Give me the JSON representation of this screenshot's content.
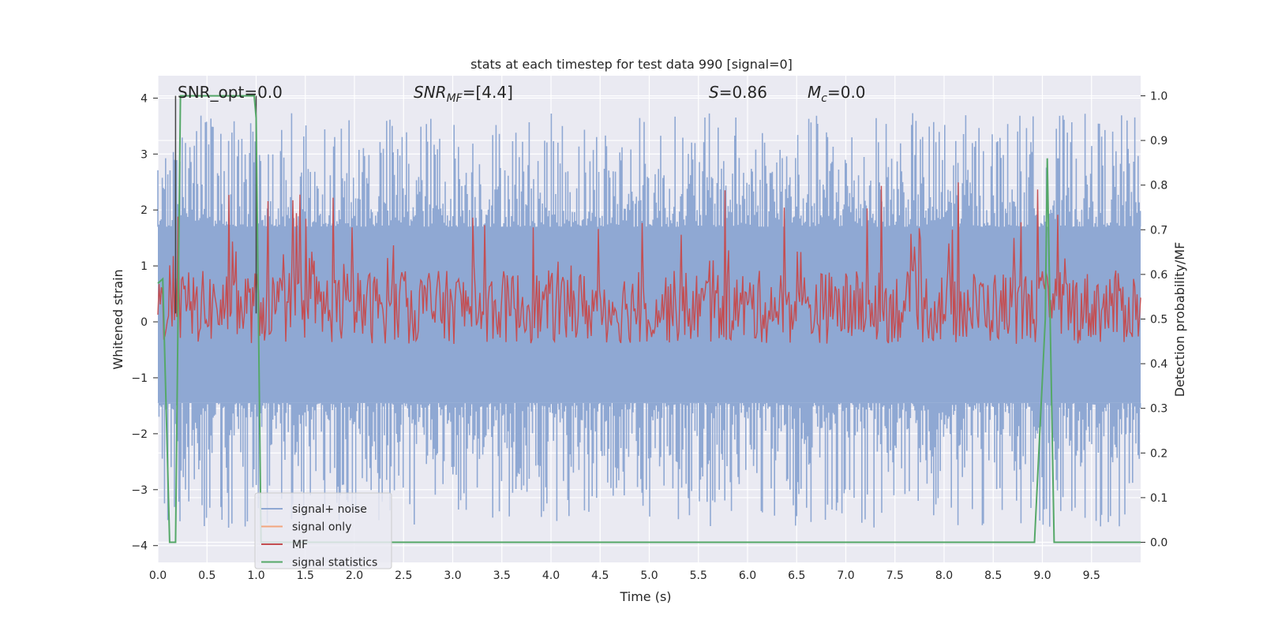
{
  "chart_data": {
    "type": "line",
    "title": "stats at each timestep for test data 990 [signal=0]",
    "xlabel": "Time (s)",
    "ylabel": "Whitened strain",
    "ylabel_right": "Detection probability/MF",
    "xlim": [
      0,
      10
    ],
    "ylim": [
      -4.3,
      4.4
    ],
    "ylim_right": [
      -0.045,
      1.045
    ],
    "x_ticks": [
      "0.0",
      "0.5",
      "1.0",
      "1.5",
      "2.0",
      "2.5",
      "3.0",
      "3.5",
      "4.0",
      "4.5",
      "5.0",
      "5.5",
      "6.0",
      "6.5",
      "7.0",
      "7.5",
      "8.0",
      "8.5",
      "9.0",
      "9.5"
    ],
    "y_ticks": [
      "4",
      "3",
      "2",
      "1",
      "0",
      "−1",
      "−2",
      "−3",
      "−4"
    ],
    "y_ticks_right": [
      "1.0",
      "0.9",
      "0.8",
      "0.7",
      "0.6",
      "0.5",
      "0.4",
      "0.3",
      "0.2",
      "0.1",
      "0.0"
    ],
    "grid": true,
    "legend_position": "lower-left",
    "annotations": {
      "snr_opt": "SNR_opt=0.0",
      "snr_mf_sym": "SNR",
      "snr_mf_sub": "MF",
      "snr_mf_val": "=[4.4]",
      "s_sym": "S",
      "s_val": "=0.86",
      "mc_sym": "M",
      "mc_sub": "c",
      "mc_val": "=0.0"
    },
    "vlines_x": [
      0.18,
      1.0
    ],
    "series": [
      {
        "name": "signal+ noise",
        "color": "#8fa8d3",
        "envelope_upper": 1.7,
        "envelope_lower": -1.45,
        "peak_max": 3.85,
        "peak_min": -3.8
      },
      {
        "name": "signal only",
        "color": "#f2a57e",
        "values": 0
      },
      {
        "name": "MF",
        "color": "#c44e52",
        "band": [
          0.0,
          0.9
        ]
      },
      {
        "name": "signal statistics",
        "color": "#55a868",
        "x": [
          0.0,
          0.05,
          0.12,
          0.18,
          0.23,
          0.25,
          0.98,
          1.0,
          1.05,
          1.1,
          8.92,
          9.03,
          9.05,
          9.12,
          9.16,
          10.0
        ],
        "y": [
          0.58,
          0.59,
          0.0,
          0.0,
          1.0,
          1.0,
          1.0,
          0.95,
          0.0,
          0.0,
          0.0,
          0.5,
          0.86,
          0.0,
          0.0,
          0.0
        ]
      }
    ]
  }
}
